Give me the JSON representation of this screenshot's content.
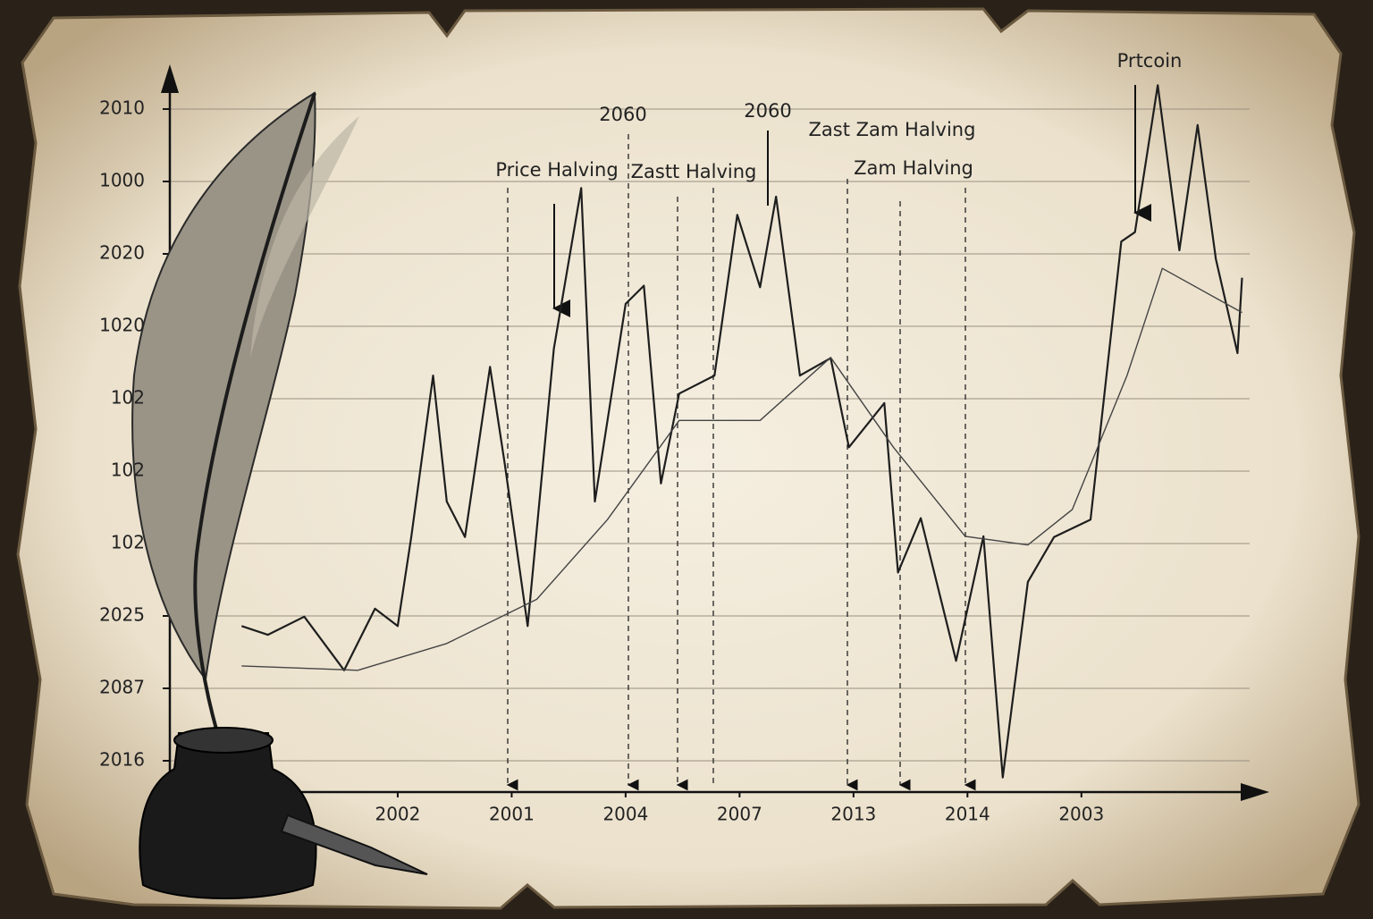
{
  "chart_data": {
    "type": "line",
    "xlim": [
      -1,
      8.5
    ],
    "ylim": [
      -0.5,
      9.5
    ],
    "xticks": [
      {
        "value": 1,
        "label": "2002"
      },
      {
        "value": 2,
        "label": "2001"
      },
      {
        "value": 3,
        "label": "2004"
      },
      {
        "value": 4,
        "label": "2007"
      },
      {
        "value": 5,
        "label": "2013"
      },
      {
        "value": 6,
        "label": "2014"
      },
      {
        "value": 7,
        "label": "2003"
      }
    ],
    "yticks": [
      {
        "value": 0,
        "label": "2016"
      },
      {
        "value": 1,
        "label": "2087"
      },
      {
        "value": 2,
        "label": "2025"
      },
      {
        "value": 3,
        "label": "102"
      },
      {
        "value": 4,
        "label": "102"
      },
      {
        "value": 5,
        "label": "102"
      },
      {
        "value": 6,
        "label": "1020"
      },
      {
        "value": 7,
        "label": "2020"
      },
      {
        "value": 8,
        "label": "1000"
      },
      {
        "value": 9,
        "label": "2010"
      }
    ],
    "grid": true,
    "annotations": [
      "2060",
      "2060",
      "Price Halving",
      "Zastt Halving",
      "Zast Zam Halving",
      "Zam Halving",
      "Prtcoin"
    ],
    "series": [
      {
        "color": "#1e1e1e",
        "x": [
          -0.37,
          -0.14,
          0.18,
          0.53,
          0.8,
          1.0,
          1.12,
          1.31,
          1.43,
          1.59,
          1.81,
          1.94,
          2.14,
          2.37,
          2.61,
          2.73,
          3.0,
          3.16,
          3.31,
          3.47,
          3.78,
          3.98,
          4.18,
          4.32,
          4.53,
          4.8,
          4.96,
          5.27,
          5.39,
          5.59,
          5.9,
          6.14,
          6.31,
          6.53,
          6.76,
          7.08,
          7.35,
          7.47,
          7.67,
          7.86,
          8.02,
          8.18,
          8.37,
          8.41
        ],
        "values": [
          1.86,
          1.74,
          1.99,
          1.25,
          2.1,
          1.86,
          3.1,
          5.32,
          3.58,
          3.09,
          5.44,
          4.09,
          1.86,
          5.69,
          7.91,
          3.58,
          6.31,
          6.56,
          3.83,
          5.07,
          5.32,
          7.54,
          6.54,
          7.79,
          5.32,
          5.56,
          4.33,
          4.94,
          2.6,
          3.35,
          1.38,
          3.1,
          -0.23,
          2.47,
          3.09,
          3.33,
          7.17,
          7.3,
          9.33,
          7.05,
          8.78,
          6.93,
          5.63,
          6.67
        ]
      },
      {
        "color": "#444444",
        "x": [
          -0.37,
          0.65,
          1.43,
          2.22,
          2.84,
          3.47,
          4.18,
          4.8,
          5.35,
          5.98,
          6.53,
          6.92,
          7.4,
          7.71,
          8.41
        ],
        "values": [
          1.31,
          1.25,
          1.62,
          2.23,
          3.33,
          4.7,
          4.7,
          5.57,
          4.33,
          3.1,
          2.98,
          3.47,
          5.32,
          6.8,
          6.19
        ]
      }
    ]
  }
}
